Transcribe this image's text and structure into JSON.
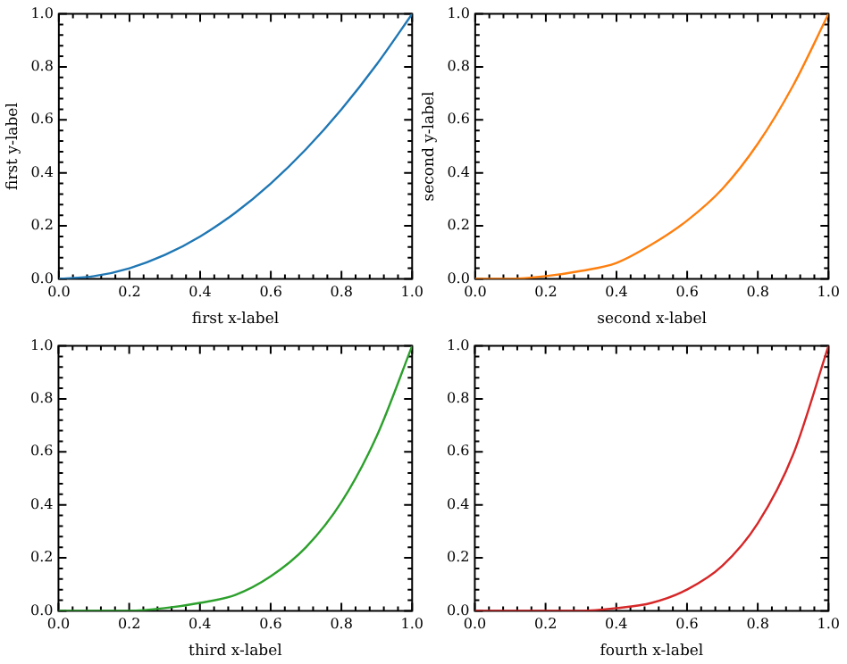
{
  "chart_data": [
    {
      "type": "line",
      "xlabel": "first x-label",
      "ylabel": "first y-label",
      "x": [
        0,
        0.1,
        0.2,
        0.3,
        0.4,
        0.5,
        0.6,
        0.7,
        0.8,
        0.9,
        1.0
      ],
      "series": [
        {
          "color": "#1f77b4",
          "values": [
            0,
            0.01,
            0.04,
            0.09,
            0.16,
            0.25,
            0.36,
            0.49,
            0.64,
            0.81,
            1.0
          ]
        }
      ],
      "xlim": [
        0,
        1
      ],
      "ylim": [
        0,
        1
      ],
      "xticks": [
        {
          "value": 0,
          "label": "0.0"
        },
        {
          "value": 0.04,
          "label": null
        },
        {
          "value": 0.08,
          "label": null
        },
        {
          "value": 0.12,
          "label": null
        },
        {
          "value": 0.16,
          "label": null
        },
        {
          "value": 0.2,
          "label": "0.2"
        },
        {
          "value": 0.24,
          "label": null
        },
        {
          "value": 0.28,
          "label": null
        },
        {
          "value": 0.32,
          "label": null
        },
        {
          "value": 0.36,
          "label": null
        },
        {
          "value": 0.4,
          "label": "0.4"
        },
        {
          "value": 0.44,
          "label": null
        },
        {
          "value": 0.48,
          "label": null
        },
        {
          "value": 0.52,
          "label": null
        },
        {
          "value": 0.56,
          "label": null
        },
        {
          "value": 0.6,
          "label": "0.6"
        },
        {
          "value": 0.64,
          "label": null
        },
        {
          "value": 0.68,
          "label": null
        },
        {
          "value": 0.72,
          "label": null
        },
        {
          "value": 0.76,
          "label": null
        },
        {
          "value": 0.8,
          "label": "0.8"
        },
        {
          "value": 0.84,
          "label": null
        },
        {
          "value": 0.88,
          "label": null
        },
        {
          "value": 0.92,
          "label": null
        },
        {
          "value": 0.96,
          "label": null
        },
        {
          "value": 1,
          "label": "1.0"
        }
      ],
      "yticks": [
        {
          "value": 0,
          "label": "0.0"
        },
        {
          "value": 0.04,
          "label": null
        },
        {
          "value": 0.08,
          "label": null
        },
        {
          "value": 0.12,
          "label": null
        },
        {
          "value": 0.16,
          "label": null
        },
        {
          "value": 0.2,
          "label": "0.2"
        },
        {
          "value": 0.24,
          "label": null
        },
        {
          "value": 0.28,
          "label": null
        },
        {
          "value": 0.32,
          "label": null
        },
        {
          "value": 0.36,
          "label": null
        },
        {
          "value": 0.4,
          "label": "0.4"
        },
        {
          "value": 0.44,
          "label": null
        },
        {
          "value": 0.48,
          "label": null
        },
        {
          "value": 0.52,
          "label": null
        },
        {
          "value": 0.56,
          "label": null
        },
        {
          "value": 0.6,
          "label": "0.6"
        },
        {
          "value": 0.64,
          "label": null
        },
        {
          "value": 0.68,
          "label": null
        },
        {
          "value": 0.72,
          "label": null
        },
        {
          "value": 0.76,
          "label": null
        },
        {
          "value": 0.8,
          "label": "0.8"
        },
        {
          "value": 0.84,
          "label": null
        },
        {
          "value": 0.88,
          "label": null
        },
        {
          "value": 0.92,
          "label": null
        },
        {
          "value": 0.96,
          "label": null
        },
        {
          "value": 1,
          "label": "1.0"
        }
      ],
      "grid": false,
      "legend": false,
      "marker": "none"
    },
    {
      "type": "line",
      "xlabel": "second x-label",
      "ylabel": "second y-label",
      "x": [
        0,
        0.1,
        0.2,
        0.3,
        0.4,
        0.5,
        0.6,
        0.7,
        0.8,
        0.9,
        1.0
      ],
      "series": [
        {
          "color": "#ff7f0e",
          "values": [
            0,
            0,
            0.01,
            0.03,
            0.06,
            0.13,
            0.22,
            0.34,
            0.51,
            0.73,
            1.0
          ]
        }
      ],
      "xlim": [
        0,
        1
      ],
      "ylim": [
        0,
        1
      ],
      "xticks": [
        {
          "value": 0,
          "label": "0.0"
        },
        {
          "value": 0.04,
          "label": null
        },
        {
          "value": 0.08,
          "label": null
        },
        {
          "value": 0.12,
          "label": null
        },
        {
          "value": 0.16,
          "label": null
        },
        {
          "value": 0.2,
          "label": "0.2"
        },
        {
          "value": 0.24,
          "label": null
        },
        {
          "value": 0.28,
          "label": null
        },
        {
          "value": 0.32,
          "label": null
        },
        {
          "value": 0.36,
          "label": null
        },
        {
          "value": 0.4,
          "label": "0.4"
        },
        {
          "value": 0.44,
          "label": null
        },
        {
          "value": 0.48,
          "label": null
        },
        {
          "value": 0.52,
          "label": null
        },
        {
          "value": 0.56,
          "label": null
        },
        {
          "value": 0.6,
          "label": "0.6"
        },
        {
          "value": 0.64,
          "label": null
        },
        {
          "value": 0.68,
          "label": null
        },
        {
          "value": 0.72,
          "label": null
        },
        {
          "value": 0.76,
          "label": null
        },
        {
          "value": 0.8,
          "label": "0.8"
        },
        {
          "value": 0.84,
          "label": null
        },
        {
          "value": 0.88,
          "label": null
        },
        {
          "value": 0.92,
          "label": null
        },
        {
          "value": 0.96,
          "label": null
        },
        {
          "value": 1,
          "label": "1.0"
        }
      ],
      "yticks": [
        {
          "value": 0,
          "label": "0.0"
        },
        {
          "value": 0.04,
          "label": null
        },
        {
          "value": 0.08,
          "label": null
        },
        {
          "value": 0.12,
          "label": null
        },
        {
          "value": 0.16,
          "label": null
        },
        {
          "value": 0.2,
          "label": "0.2"
        },
        {
          "value": 0.24,
          "label": null
        },
        {
          "value": 0.28,
          "label": null
        },
        {
          "value": 0.32,
          "label": null
        },
        {
          "value": 0.36,
          "label": null
        },
        {
          "value": 0.4,
          "label": "0.4"
        },
        {
          "value": 0.44,
          "label": null
        },
        {
          "value": 0.48,
          "label": null
        },
        {
          "value": 0.52,
          "label": null
        },
        {
          "value": 0.56,
          "label": null
        },
        {
          "value": 0.6,
          "label": "0.6"
        },
        {
          "value": 0.64,
          "label": null
        },
        {
          "value": 0.68,
          "label": null
        },
        {
          "value": 0.72,
          "label": null
        },
        {
          "value": 0.76,
          "label": null
        },
        {
          "value": 0.8,
          "label": "0.8"
        },
        {
          "value": 0.84,
          "label": null
        },
        {
          "value": 0.88,
          "label": null
        },
        {
          "value": 0.92,
          "label": null
        },
        {
          "value": 0.96,
          "label": null
        },
        {
          "value": 1,
          "label": "1.0"
        }
      ],
      "grid": false,
      "legend": false,
      "marker": "none"
    },
    {
      "type": "line",
      "xlabel": "third x-label",
      "x": [
        0,
        0.1,
        0.2,
        0.3,
        0.4,
        0.5,
        0.6,
        0.7,
        0.8,
        0.9,
        1.0
      ],
      "series": [
        {
          "color": "#2ca02c",
          "values": [
            0,
            0,
            0,
            0.01,
            0.03,
            0.06,
            0.13,
            0.24,
            0.41,
            0.66,
            1.0
          ]
        }
      ],
      "xlim": [
        0,
        1
      ],
      "ylim": [
        0,
        1
      ],
      "xticks": [
        {
          "value": 0,
          "label": "0.0"
        },
        {
          "value": 0.04,
          "label": null
        },
        {
          "value": 0.08,
          "label": null
        },
        {
          "value": 0.12,
          "label": null
        },
        {
          "value": 0.16,
          "label": null
        },
        {
          "value": 0.2,
          "label": "0.2"
        },
        {
          "value": 0.24,
          "label": null
        },
        {
          "value": 0.28,
          "label": null
        },
        {
          "value": 0.32,
          "label": null
        },
        {
          "value": 0.36,
          "label": null
        },
        {
          "value": 0.4,
          "label": "0.4"
        },
        {
          "value": 0.44,
          "label": null
        },
        {
          "value": 0.48,
          "label": null
        },
        {
          "value": 0.52,
          "label": null
        },
        {
          "value": 0.56,
          "label": null
        },
        {
          "value": 0.6,
          "label": "0.6"
        },
        {
          "value": 0.64,
          "label": null
        },
        {
          "value": 0.68,
          "label": null
        },
        {
          "value": 0.72,
          "label": null
        },
        {
          "value": 0.76,
          "label": null
        },
        {
          "value": 0.8,
          "label": "0.8"
        },
        {
          "value": 0.84,
          "label": null
        },
        {
          "value": 0.88,
          "label": null
        },
        {
          "value": 0.92,
          "label": null
        },
        {
          "value": 0.96,
          "label": null
        },
        {
          "value": 1,
          "label": "1.0"
        }
      ],
      "yticks": [
        {
          "value": 0,
          "label": "0.0"
        },
        {
          "value": 0.04,
          "label": null
        },
        {
          "value": 0.08,
          "label": null
        },
        {
          "value": 0.12,
          "label": null
        },
        {
          "value": 0.16,
          "label": null
        },
        {
          "value": 0.2,
          "label": "0.2"
        },
        {
          "value": 0.24,
          "label": null
        },
        {
          "value": 0.28,
          "label": null
        },
        {
          "value": 0.32,
          "label": null
        },
        {
          "value": 0.36,
          "label": null
        },
        {
          "value": 0.4,
          "label": "0.4"
        },
        {
          "value": 0.44,
          "label": null
        },
        {
          "value": 0.48,
          "label": null
        },
        {
          "value": 0.52,
          "label": null
        },
        {
          "value": 0.56,
          "label": null
        },
        {
          "value": 0.6,
          "label": "0.6"
        },
        {
          "value": 0.64,
          "label": null
        },
        {
          "value": 0.68,
          "label": null
        },
        {
          "value": 0.72,
          "label": null
        },
        {
          "value": 0.76,
          "label": null
        },
        {
          "value": 0.8,
          "label": "0.8"
        },
        {
          "value": 0.84,
          "label": null
        },
        {
          "value": 0.88,
          "label": null
        },
        {
          "value": 0.92,
          "label": null
        },
        {
          "value": 0.96,
          "label": null
        },
        {
          "value": 1,
          "label": "1.0"
        }
      ],
      "grid": false,
      "legend": false,
      "marker": "none"
    },
    {
      "type": "line",
      "xlabel": "fourth x-label",
      "x": [
        0,
        0.1,
        0.2,
        0.3,
        0.4,
        0.5,
        0.6,
        0.7,
        0.8,
        0.9,
        1.0
      ],
      "series": [
        {
          "color": "#d62728",
          "values": [
            0,
            0,
            0,
            0,
            0.01,
            0.03,
            0.08,
            0.17,
            0.33,
            0.59,
            1.0
          ]
        }
      ],
      "xlim": [
        0,
        1
      ],
      "ylim": [
        0,
        1
      ],
      "xticks": [
        {
          "value": 0,
          "label": "0.0"
        },
        {
          "value": 0.04,
          "label": null
        },
        {
          "value": 0.08,
          "label": null
        },
        {
          "value": 0.12,
          "label": null
        },
        {
          "value": 0.16,
          "label": null
        },
        {
          "value": 0.2,
          "label": "0.2"
        },
        {
          "value": 0.24,
          "label": null
        },
        {
          "value": 0.28,
          "label": null
        },
        {
          "value": 0.32,
          "label": null
        },
        {
          "value": 0.36,
          "label": null
        },
        {
          "value": 0.4,
          "label": "0.4"
        },
        {
          "value": 0.44,
          "label": null
        },
        {
          "value": 0.48,
          "label": null
        },
        {
          "value": 0.52,
          "label": null
        },
        {
          "value": 0.56,
          "label": null
        },
        {
          "value": 0.6,
          "label": "0.6"
        },
        {
          "value": 0.64,
          "label": null
        },
        {
          "value": 0.68,
          "label": null
        },
        {
          "value": 0.72,
          "label": null
        },
        {
          "value": 0.76,
          "label": null
        },
        {
          "value": 0.8,
          "label": "0.8"
        },
        {
          "value": 0.84,
          "label": null
        },
        {
          "value": 0.88,
          "label": null
        },
        {
          "value": 0.92,
          "label": null
        },
        {
          "value": 0.96,
          "label": null
        },
        {
          "value": 1,
          "label": "1.0"
        }
      ],
      "yticks": [
        {
          "value": 0,
          "label": "0.0"
        },
        {
          "value": 0.04,
          "label": null
        },
        {
          "value": 0.08,
          "label": null
        },
        {
          "value": 0.12,
          "label": null
        },
        {
          "value": 0.16,
          "label": null
        },
        {
          "value": 0.2,
          "label": "0.2"
        },
        {
          "value": 0.24,
          "label": null
        },
        {
          "value": 0.28,
          "label": null
        },
        {
          "value": 0.32,
          "label": null
        },
        {
          "value": 0.36,
          "label": null
        },
        {
          "value": 0.4,
          "label": "0.4"
        },
        {
          "value": 0.44,
          "label": null
        },
        {
          "value": 0.48,
          "label": null
        },
        {
          "value": 0.52,
          "label": null
        },
        {
          "value": 0.56,
          "label": null
        },
        {
          "value": 0.6,
          "label": "0.6"
        },
        {
          "value": 0.64,
          "label": null
        },
        {
          "value": 0.68,
          "label": null
        },
        {
          "value": 0.72,
          "label": null
        },
        {
          "value": 0.76,
          "label": null
        },
        {
          "value": 0.8,
          "label": "0.8"
        },
        {
          "value": 0.84,
          "label": null
        },
        {
          "value": 0.88,
          "label": null
        },
        {
          "value": 0.92,
          "label": null
        },
        {
          "value": 0.96,
          "label": null
        },
        {
          "value": 1,
          "label": "1.0"
        }
      ],
      "grid": false,
      "legend": false,
      "marker": "none"
    }
  ]
}
